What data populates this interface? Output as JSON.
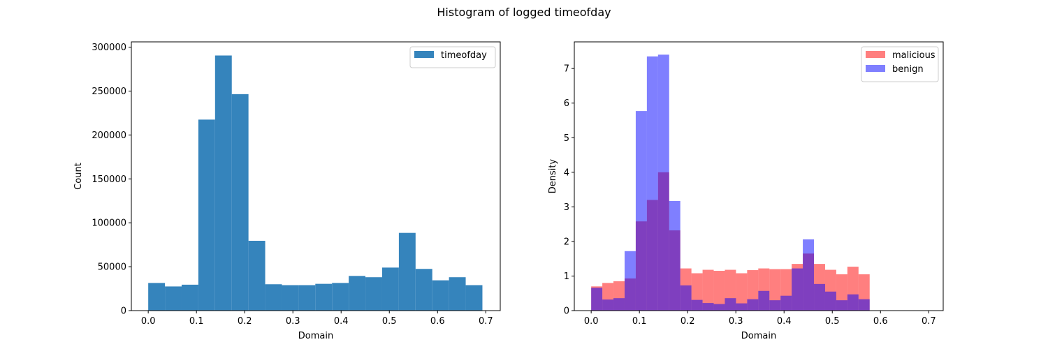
{
  "figure": {
    "title": "Histogram of logged timeofday"
  },
  "chart_data": [
    {
      "type": "bar",
      "histogram": true,
      "xlabel": "Domain",
      "ylabel": "Count",
      "xlim": [
        -0.035,
        0.73
      ],
      "ylim": [
        0,
        306000
      ],
      "xticks": [
        0.0,
        0.1,
        0.2,
        0.3,
        0.4,
        0.5,
        0.6,
        0.7
      ],
      "xtick_labels": [
        "0.0",
        "0.1",
        "0.2",
        "0.3",
        "0.4",
        "0.5",
        "0.6",
        "0.7"
      ],
      "yticks": [
        0,
        50000,
        100000,
        150000,
        200000,
        250000,
        300000
      ],
      "ytick_labels": [
        "0",
        "50000",
        "100000",
        "150000",
        "200000",
        "250000",
        "300000"
      ],
      "grid": false,
      "legend_position": "top-right",
      "bin_start": 0.0,
      "bin_width": 0.03465,
      "series": [
        {
          "name": "timeofday",
          "color": "#3584bc",
          "alpha": 1.0,
          "values": [
            31500,
            27500,
            29500,
            217500,
            290500,
            246500,
            79500,
            30000,
            29000,
            29000,
            30500,
            31500,
            39500,
            38000,
            49000,
            88500,
            47500,
            34500,
            38000,
            29000
          ]
        }
      ]
    },
    {
      "type": "bar",
      "histogram": true,
      "xlabel": "Domain",
      "ylabel": "Density",
      "xlim": [
        -0.035,
        0.73
      ],
      "ylim": [
        0,
        7.77
      ],
      "xticks": [
        0.0,
        0.1,
        0.2,
        0.3,
        0.4,
        0.5,
        0.6,
        0.7
      ],
      "xtick_labels": [
        "0.0",
        "0.1",
        "0.2",
        "0.3",
        "0.4",
        "0.5",
        "0.6",
        "0.7"
      ],
      "yticks": [
        0,
        1,
        2,
        3,
        4,
        5,
        6,
        7
      ],
      "ytick_labels": [
        "0",
        "1",
        "2",
        "3",
        "4",
        "5",
        "6",
        "7"
      ],
      "grid": false,
      "legend_position": "top-right",
      "bin_start": 0.0,
      "bin_width": 0.0231,
      "series": [
        {
          "name": "malicious",
          "color": "#ff0000",
          "alpha": 0.5,
          "values": [
            0.7,
            0.8,
            0.85,
            0.93,
            2.58,
            3.2,
            4.0,
            2.32,
            1.22,
            1.08,
            1.18,
            1.15,
            1.18,
            1.08,
            1.17,
            1.22,
            1.2,
            1.2,
            1.35,
            1.65,
            1.35,
            1.18,
            1.05,
            1.27,
            1.05
          ]
        },
        {
          "name": "benign",
          "color": "#0000ff",
          "alpha": 0.5,
          "values": [
            0.66,
            0.32,
            0.36,
            1.72,
            5.77,
            7.35,
            7.4,
            3.17,
            0.73,
            0.31,
            0.22,
            0.19,
            0.36,
            0.21,
            0.33,
            0.57,
            0.3,
            0.43,
            1.22,
            2.06,
            0.77,
            0.55,
            0.3,
            0.47,
            0.33
          ]
        }
      ]
    }
  ]
}
